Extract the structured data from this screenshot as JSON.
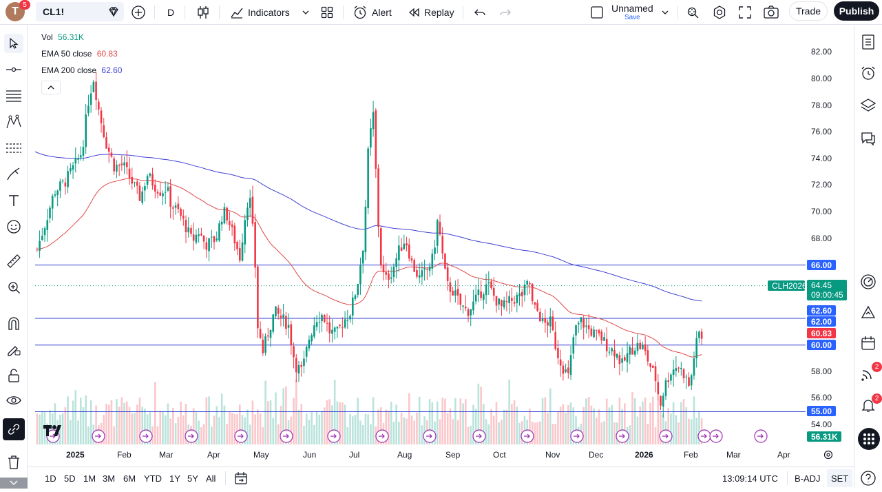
{
  "header": {
    "avatar_letter": "T",
    "avatar_badge": "5",
    "symbol": "CL1!",
    "interval": "D",
    "indicators_label": "Indicators",
    "alert_label": "Alert",
    "replay_label": "Replay",
    "layout_name": "Unnamed",
    "layout_save": "Save",
    "trade_label": "Trade",
    "publish_label": "Publish"
  },
  "legend": {
    "vol_label": "Vol",
    "vol_value": "56.31K",
    "ema50_label": "EMA 50 close",
    "ema50_value": "60.83",
    "ema200_label": "EMA 200 close",
    "ema200_value": "62.60"
  },
  "price_axis": [
    "82.00",
    "80.00",
    "78.00",
    "76.00",
    "74.00",
    "72.00",
    "70.00",
    "68.00",
    "58.00",
    "56.00",
    "54.00"
  ],
  "tags": {
    "line66": "66.00",
    "symbol_tag": "CLH2026",
    "last_price": "64.45",
    "countdown": "09:00:45",
    "ema200": "62.60",
    "line62": "62.00",
    "ema50": "60.83",
    "line60": "60.00",
    "line55": "55.00",
    "volume": "56.31K"
  },
  "time_axis": [
    "2025",
    "Feb",
    "Mar",
    "Apr",
    "May",
    "Jun",
    "Jul",
    "Aug",
    "Sep",
    "Oct",
    "Nov",
    "Dec",
    "2026",
    "Feb",
    "Mar",
    "Apr"
  ],
  "bottom": {
    "ranges": [
      "1D",
      "5D",
      "1M",
      "3M",
      "6M",
      "YTD",
      "1Y",
      "5Y",
      "All"
    ],
    "clock": "13:09:14 UTC",
    "badj": "B-ADJ",
    "set": "SET"
  },
  "right_badges": {
    "news": "2",
    "alerts": "2"
  },
  "colors": {
    "up": "#089981",
    "down": "#f23645",
    "ema50": "#e04848",
    "ema200": "#3f3fd6",
    "hline": "#2e3fd1",
    "blue_tag": "#2962ff"
  },
  "chart_data": {
    "type": "candlestick",
    "ylim": [
      53.5,
      83.5
    ],
    "hlines": [
      66.0,
      62.0,
      60.0,
      55.0
    ],
    "last_price": 64.45
  }
}
